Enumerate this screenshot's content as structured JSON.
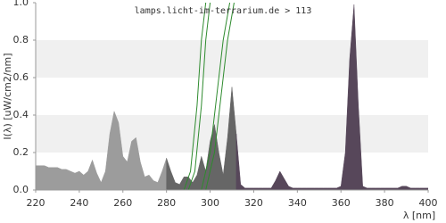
{
  "chart_data": {
    "type": "area",
    "title": "lamps.licht-im-terrarium.de > 113",
    "x_label": "λ [nm]",
    "y_label": "I(λ)  [uW/cm2/nm]",
    "xlim": [
      220,
      400
    ],
    "ylim": [
      0,
      1
    ],
    "xticks": [
      220,
      240,
      260,
      280,
      300,
      320,
      340,
      360,
      380,
      400
    ],
    "yticks": [
      {
        "value": 0,
        "label": "0.0"
      },
      0.2,
      0.4,
      0.6,
      0.8,
      {
        "value": 1,
        "label": "1.0"
      }
    ],
    "grid": "bands",
    "series": [
      {
        "type": "area",
        "color": "#9c9c9c",
        "x": [
          220,
          222,
          224,
          226,
          228,
          230,
          232,
          234,
          236,
          238,
          240,
          242,
          244,
          246,
          248,
          250,
          252,
          254,
          256,
          258,
          260,
          262,
          264,
          266,
          268,
          270,
          272,
          274,
          276,
          278,
          280
        ],
        "values": [
          0.13,
          0.13,
          0.13,
          0.12,
          0.12,
          0.12,
          0.11,
          0.11,
          0.1,
          0.09,
          0.1,
          0.08,
          0.1,
          0.16,
          0.09,
          0.04,
          0.1,
          0.3,
          0.42,
          0.36,
          0.18,
          0.15,
          0.26,
          0.28,
          0.15,
          0.07,
          0.08,
          0.05,
          0.04,
          0.1,
          0.17
        ]
      },
      {
        "type": "area",
        "color": "#666666",
        "x": [
          280,
          282,
          284,
          286,
          288,
          290,
          292,
          294,
          296,
          298,
          300,
          302,
          304,
          306,
          308,
          310,
          312
        ],
        "values": [
          0.17,
          0.1,
          0.04,
          0.03,
          0.07,
          0.07,
          0.04,
          0.08,
          0.18,
          0.1,
          0.26,
          0.35,
          0.2,
          0.08,
          0.28,
          0.55,
          0.3
        ]
      },
      {
        "type": "area",
        "color": "#57475a",
        "x": [
          312,
          314,
          316,
          318,
          320,
          322,
          324,
          326,
          328,
          330,
          332,
          334,
          336,
          338,
          340,
          342,
          344,
          346,
          348,
          350,
          352,
          354,
          356,
          358,
          360,
          362,
          364,
          366,
          368,
          370,
          372,
          374,
          376,
          378,
          380,
          382,
          384,
          386,
          388,
          390,
          392,
          394,
          396,
          398,
          400
        ],
        "values": [
          0.3,
          0.03,
          0.01,
          0.01,
          0.01,
          0.01,
          0.01,
          0.01,
          0.01,
          0.05,
          0.1,
          0.06,
          0.02,
          0.01,
          0.01,
          0.01,
          0.01,
          0.01,
          0.01,
          0.01,
          0.01,
          0.01,
          0.01,
          0.01,
          0.02,
          0.2,
          0.7,
          0.99,
          0.45,
          0.02,
          0.01,
          0.01,
          0.01,
          0.01,
          0.01,
          0.01,
          0.01,
          0.01,
          0.02,
          0.02,
          0.01,
          0.01,
          0.01,
          0.01,
          0.01
        ]
      },
      {
        "type": "line",
        "color": "#2e8b2e",
        "x": [
          288,
          291,
          294,
          296,
          298
        ],
        "values": [
          0,
          0.1,
          0.45,
          0.8,
          1
        ]
      },
      {
        "type": "line",
        "color": "#2e8b2e",
        "x": [
          290,
          293,
          296,
          298,
          300
        ],
        "values": [
          0,
          0.1,
          0.45,
          0.8,
          1
        ]
      },
      {
        "type": "line",
        "color": "#2e8b2e",
        "x": [
          296,
          300,
          303,
          306,
          309
        ],
        "values": [
          0,
          0.2,
          0.5,
          0.8,
          1
        ]
      },
      {
        "type": "line",
        "color": "#2e8b2e",
        "x": [
          298,
          302,
          305,
          308,
          311
        ],
        "values": [
          0,
          0.2,
          0.5,
          0.8,
          1
        ]
      }
    ]
  }
}
